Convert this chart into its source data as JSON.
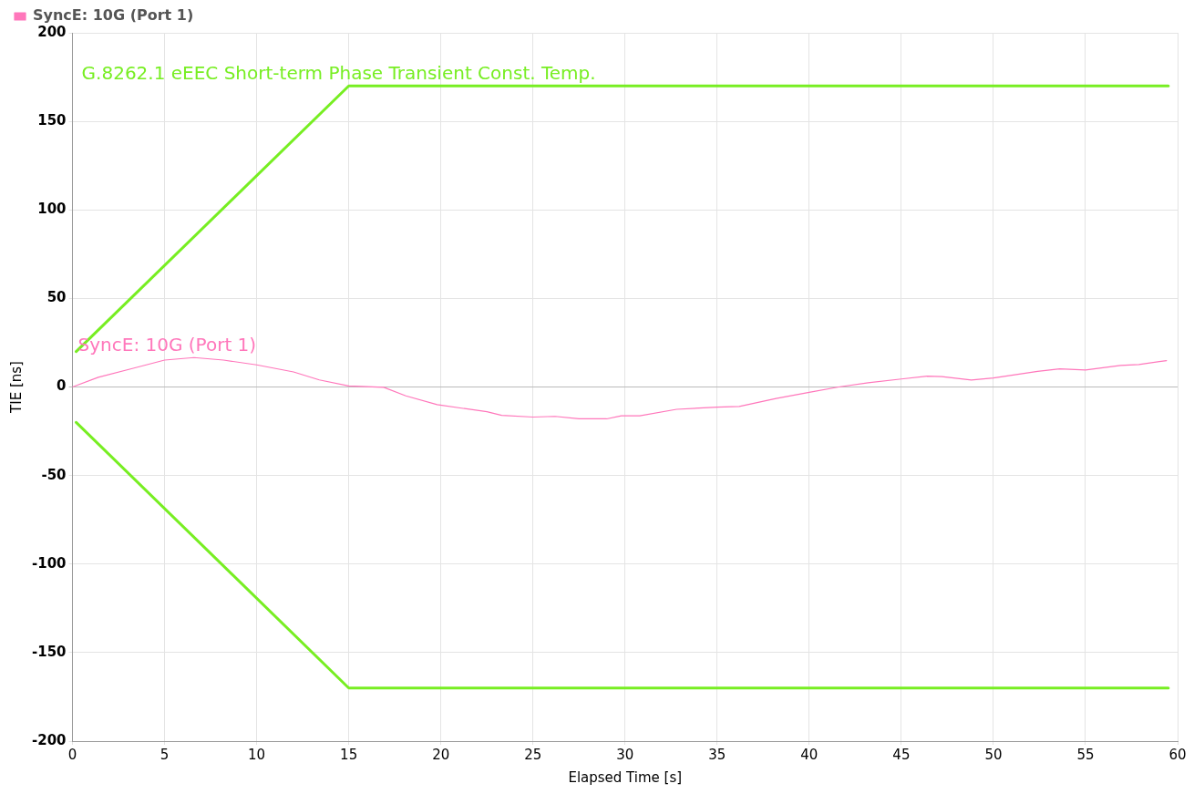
{
  "chart_data": {
    "type": "line",
    "xlabel": "Elapsed Time [s]",
    "ylabel": "TIE [ns]",
    "xlim": [
      0,
      60
    ],
    "xticks": [
      0,
      5,
      10,
      15,
      20,
      25,
      30,
      35,
      40,
      45,
      50,
      55,
      60
    ],
    "ylim": [
      -200,
      200
    ],
    "yticks": [
      -200,
      -150,
      -100,
      -50,
      0,
      50,
      100,
      150,
      200
    ],
    "grid": true,
    "legend": "top left",
    "marker": "none",
    "line_style": "solid",
    "series": [
      {
        "name": "SyncE: 10G (Port 1)",
        "color": "#ff77bb",
        "x": [
          0,
          1.4,
          3.2,
          5,
          6.6,
          8.2,
          10,
          12,
          13.4,
          15,
          16.9,
          18.1,
          19.8,
          22.5,
          23.3,
          25,
          26.2,
          27.5,
          29,
          29.8,
          30.8,
          32.8,
          35,
          36.2,
          38.2,
          40,
          41.6,
          43.2,
          45,
          46.4,
          47.2,
          48.8,
          50,
          52.4,
          53.6,
          55,
          56.9,
          57.9,
          59.4
        ],
        "values": [
          0,
          5.5,
          10.3,
          15.2,
          16.6,
          15.2,
          12.5,
          8.5,
          4,
          0.6,
          -0.2,
          -5,
          -10,
          -14,
          -16,
          -17,
          -16.6,
          -18,
          -18,
          -16.3,
          -16.3,
          -12.6,
          -11.4,
          -11,
          -6.5,
          -3,
          0,
          2.4,
          4.5,
          6.1,
          5.9,
          3.9,
          5.1,
          8.8,
          10.2,
          9.6,
          12.2,
          12.7,
          14.9
        ]
      },
      {
        "name": "G.8262.1 eEEC Short-term Phase Transient Const. Temp.",
        "color": "#77ee22",
        "x": [
          0.2,
          15,
          59.5
        ],
        "values": [
          20,
          170,
          170
        ]
      },
      {
        "color": "#77ee22",
        "x": [
          0.2,
          15,
          59.5
        ],
        "values": [
          -20,
          -170,
          -170
        ]
      }
    ]
  }
}
